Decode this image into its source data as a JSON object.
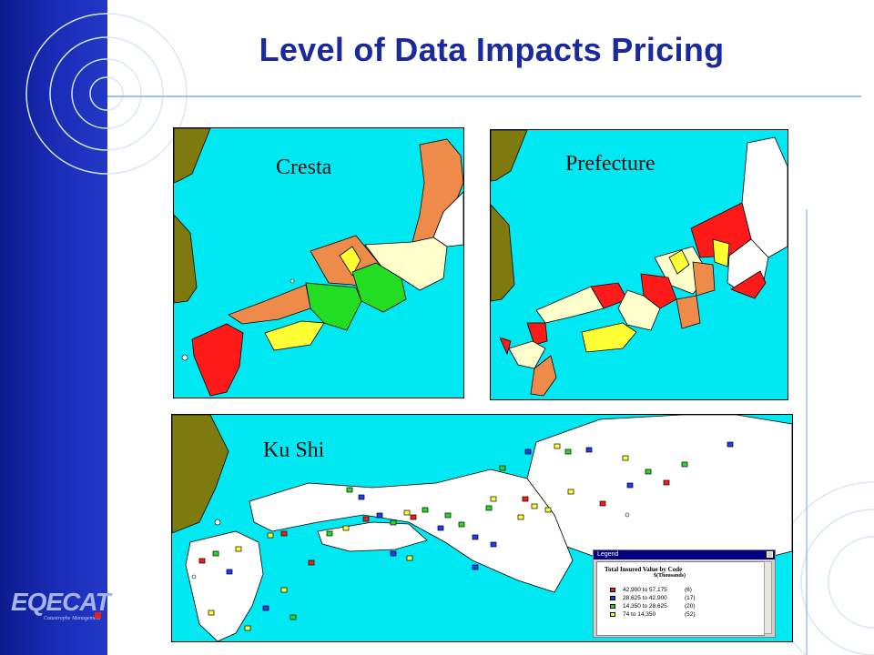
{
  "title": "Level of Data Impacts Pricing",
  "maps": [
    {
      "label": "Cresta"
    },
    {
      "label": "Prefecture"
    },
    {
      "label": "Ku Shi"
    }
  ],
  "legend": {
    "window_title": "Legend",
    "title": "Total Insured Value by Code",
    "subtitle": "$(Thousands)",
    "items": [
      {
        "range": "42,900 to 57,175",
        "count": "(6)",
        "color": "#ff1a1a"
      },
      {
        "range": "28,625 to 42,900",
        "count": "(17)",
        "color": "#1f3bff"
      },
      {
        "range": "14,350 to 28,625",
        "count": "(20)",
        "color": "#22dd22"
      },
      {
        "range": "74 to 14,350",
        "count": "(52)",
        "color": "#ffff33"
      }
    ]
  },
  "logo": {
    "name": "EQECAT",
    "tagline": "Catastrophe Management"
  },
  "colors": {
    "sea": "#00e8f2",
    "land_mainland": "#7f7a10",
    "title": "#1a2a9c",
    "sidebar": "#1a2db8"
  }
}
